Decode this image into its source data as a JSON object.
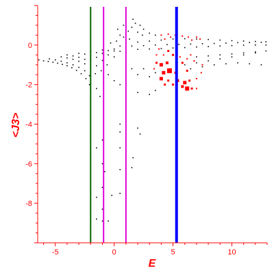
{
  "chart_data": {
    "type": "scatter",
    "title": "",
    "xlabel": "E",
    "ylabel": "<J3>",
    "xlim": [
      -6.5,
      13
    ],
    "ylim": [
      -10,
      2
    ],
    "xticks": [
      -5,
      0,
      5,
      10
    ],
    "yticks": [
      0,
      -2,
      -4,
      -6,
      -8
    ],
    "grid": false,
    "colors": {
      "axis": "#ff0000",
      "black_points": "#000000",
      "red_points": "#ff0000"
    },
    "vertical_lines": [
      {
        "x": -2.0,
        "color": "#006400"
      },
      {
        "x": -0.9,
        "color": "#dd00dd"
      },
      {
        "x": 1.0,
        "color": "#dd00dd"
      },
      {
        "x": 5.3,
        "color": "#0000ff"
      }
    ],
    "series": [
      {
        "color": "#000000",
        "points": [
          [
            -6.4,
            -0.75
          ],
          [
            -6.0,
            -0.8
          ],
          [
            -5.6,
            -0.83
          ],
          [
            -5.2,
            -0.87
          ],
          [
            -4.8,
            -0.92
          ],
          [
            -4.4,
            -0.98
          ],
          [
            -4.0,
            -1.05
          ],
          [
            -3.6,
            -1.15
          ],
          [
            -3.2,
            -1.28
          ],
          [
            -2.8,
            -1.45
          ],
          [
            -2.4,
            -1.7
          ],
          [
            -2.1,
            -2.0
          ],
          [
            -5.5,
            -0.7
          ],
          [
            -5.0,
            -0.75
          ],
          [
            -4.5,
            -0.82
          ],
          [
            -4.0,
            -0.9
          ],
          [
            -3.5,
            -1.0
          ],
          [
            -3.0,
            -1.13
          ],
          [
            -2.5,
            -1.3
          ],
          [
            -2.1,
            -1.55
          ],
          [
            -4.5,
            -0.6
          ],
          [
            -4.0,
            -0.65
          ],
          [
            -3.5,
            -0.72
          ],
          [
            -3.0,
            -0.82
          ],
          [
            -2.5,
            -0.95
          ],
          [
            -2.0,
            -1.15
          ],
          [
            -1.6,
            -1.45
          ],
          [
            -4.0,
            -0.5
          ],
          [
            -3.5,
            -0.55
          ],
          [
            -3.0,
            -0.62
          ],
          [
            -2.5,
            -0.72
          ],
          [
            -2.0,
            -0.85
          ],
          [
            -1.5,
            -1.05
          ],
          [
            -1.1,
            -1.3
          ],
          [
            -3.0,
            -0.42
          ],
          [
            -2.5,
            -0.46
          ],
          [
            -2.0,
            -0.52
          ],
          [
            -1.5,
            -0.62
          ],
          [
            -1.0,
            -0.78
          ],
          [
            -0.6,
            -1.0
          ],
          [
            -2.0,
            -0.35
          ],
          [
            -1.5,
            -0.38
          ],
          [
            -1.0,
            -0.42
          ],
          [
            -0.5,
            -0.5
          ],
          [
            0.0,
            -0.6
          ],
          [
            -1.0,
            -0.25
          ],
          [
            -0.5,
            -0.28
          ],
          [
            0.0,
            -0.3
          ],
          [
            0.5,
            -0.32
          ],
          [
            1.0,
            -0.35
          ],
          [
            0.0,
            -0.2
          ],
          [
            1.0,
            -0.22
          ],
          [
            2.0,
            -0.22
          ],
          [
            3.0,
            -0.2
          ],
          [
            4.0,
            -0.18
          ],
          [
            5.0,
            -0.15
          ],
          [
            6.0,
            -0.13
          ],
          [
            7.0,
            -0.1
          ],
          [
            8.0,
            -0.08
          ],
          [
            9.0,
            -0.05
          ],
          [
            10.0,
            -0.03
          ],
          [
            11.0,
            -0.01
          ],
          [
            12.0,
            0.0
          ],
          [
            12.9,
            0.0
          ],
          [
            0.5,
            -0.05
          ],
          [
            1.5,
            -0.05
          ],
          [
            2.5,
            -0.03
          ],
          [
            3.5,
            0.0
          ],
          [
            4.5,
            0.02
          ],
          [
            5.5,
            0.03
          ],
          [
            6.5,
            0.05
          ],
          [
            7.5,
            0.07
          ],
          [
            8.5,
            0.08
          ],
          [
            9.5,
            0.1
          ],
          [
            10.5,
            0.12
          ],
          [
            11.5,
            0.13
          ],
          [
            12.5,
            0.14
          ],
          [
            1.0,
            0.1
          ],
          [
            2.0,
            0.15
          ],
          [
            3.0,
            0.2
          ],
          [
            4.0,
            0.25
          ],
          [
            5.0,
            0.3
          ],
          [
            6.0,
            0.32
          ],
          [
            7.0,
            0.3
          ],
          [
            8.0,
            0.28
          ],
          [
            9.0,
            0.25
          ],
          [
            10.0,
            0.22
          ],
          [
            11.0,
            0.2
          ],
          [
            12.0,
            0.18
          ],
          [
            12.9,
            0.16
          ],
          [
            0.8,
            0.4
          ],
          [
            1.2,
            0.7
          ],
          [
            1.5,
            0.9
          ],
          [
            1.8,
            1.1
          ],
          [
            2.2,
            1.0
          ],
          [
            2.5,
            0.8
          ],
          [
            3.0,
            0.6
          ],
          [
            3.5,
            0.5
          ],
          [
            2.0,
            0.65
          ],
          [
            1.0,
            1.2
          ],
          [
            1.6,
            1.3
          ],
          [
            2.4,
            0.5
          ],
          [
            0.2,
            0.2
          ],
          [
            0.5,
            0.5
          ],
          [
            -0.3,
            0.1
          ],
          [
            0.3,
            0.8
          ],
          [
            0.8,
            1.0
          ],
          [
            1.3,
            0.3
          ],
          [
            1.0,
            -0.9
          ],
          [
            1.5,
            -1.2
          ],
          [
            2.0,
            -1.5
          ],
          [
            2.5,
            -1.2
          ],
          [
            3.0,
            -1.6
          ],
          [
            3.5,
            -1.4
          ],
          [
            6.0,
            -1.0
          ],
          [
            7.0,
            -0.9
          ],
          [
            8.0,
            -0.8
          ],
          [
            9.0,
            -0.7
          ],
          [
            10.0,
            -0.6
          ],
          [
            11.0,
            -0.5
          ],
          [
            12.0,
            -0.4
          ],
          [
            12.9,
            -0.3
          ],
          [
            6.5,
            -1.2
          ],
          [
            7.5,
            -1.1
          ],
          [
            8.5,
            -1.0
          ],
          [
            9.5,
            -0.95
          ],
          [
            10.5,
            -0.9
          ],
          [
            11.5,
            -0.95
          ],
          [
            12.5,
            -1.0
          ],
          [
            7.0,
            -0.6
          ],
          [
            8.0,
            -0.55
          ],
          [
            9.0,
            -0.5
          ],
          [
            10.0,
            -0.45
          ],
          [
            11.0,
            -0.4
          ],
          [
            12.0,
            -0.35
          ],
          [
            2.0,
            -2.4
          ],
          [
            3.0,
            -2.5
          ],
          [
            3.5,
            -2.3
          ],
          [
            -0.5,
            -1.5
          ],
          [
            0.0,
            -1.8
          ],
          [
            0.5,
            -2.0
          ],
          [
            -1.5,
            -2.2
          ],
          [
            -1.2,
            -2.6
          ],
          [
            -2.0,
            -4.1
          ],
          [
            -2.0,
            -4.6
          ],
          [
            -2.0,
            -5.0
          ],
          [
            -2.0,
            -5.5
          ],
          [
            -1.5,
            -5.2
          ],
          [
            -1.0,
            -4.8
          ],
          [
            -1.0,
            -6.0
          ],
          [
            -1.0,
            -7.2
          ],
          [
            0.5,
            -4.0
          ],
          [
            0.5,
            -4.4
          ],
          [
            0.5,
            -5.2
          ],
          [
            0.5,
            -6.3
          ],
          [
            0.5,
            -7.5
          ],
          [
            1.5,
            -6.2
          ],
          [
            2.0,
            -4.2
          ],
          [
            2.2,
            -4.5
          ],
          [
            -1.5,
            -7.7
          ],
          [
            -1.0,
            -8.3
          ],
          [
            -1.5,
            -8.8
          ],
          [
            -1.0,
            -8.9
          ],
          [
            -0.5,
            -8.9
          ],
          [
            -0.8,
            -6.4
          ],
          [
            -0.2,
            -7.6
          ],
          [
            1.0,
            -6.5
          ],
          [
            1.6,
            -5.7
          ]
        ]
      },
      {
        "color": "#ff0000",
        "points": [
          [
            4.0,
            0.5
          ],
          [
            4.6,
            0.55
          ],
          [
            5.2,
            0.5
          ],
          [
            5.8,
            0.45
          ],
          [
            6.3,
            0.4
          ],
          [
            4.3,
            0.3
          ],
          [
            4.8,
            0.4
          ],
          [
            6.6,
            0.25
          ],
          [
            7.0,
            0.4
          ],
          [
            7.3,
            0.3
          ],
          [
            3.8,
            -0.2
          ],
          [
            3.6,
            -0.5
          ],
          [
            4.2,
            -0.5
          ],
          [
            4.6,
            -0.3
          ],
          [
            5.0,
            -0.5
          ],
          [
            5.6,
            -0.6
          ],
          [
            6.2,
            -0.7
          ],
          [
            6.5,
            -0.5
          ],
          [
            3.6,
            -0.9
          ],
          [
            4.0,
            -1.0
          ],
          [
            4.5,
            -0.9
          ],
          [
            5.8,
            -0.9
          ],
          [
            6.8,
            -0.8
          ],
          [
            7.5,
            -1.0
          ],
          [
            3.4,
            -1.2
          ],
          [
            4.2,
            -1.4
          ],
          [
            4.7,
            -1.3
          ],
          [
            5.2,
            -1.4
          ],
          [
            6.2,
            -1.3
          ],
          [
            7.4,
            -1.4
          ],
          [
            4.0,
            -1.7
          ],
          [
            4.6,
            -1.8
          ],
          [
            5.4,
            -1.8
          ],
          [
            6.0,
            -1.9
          ],
          [
            6.4,
            -1.8
          ],
          [
            7.0,
            -1.7
          ],
          [
            4.3,
            -2.0
          ],
          [
            5.0,
            -2.0
          ],
          [
            5.8,
            -2.1
          ],
          [
            6.2,
            -2.2
          ],
          [
            6.6,
            -2.2
          ],
          [
            7.0,
            -2.2
          ]
        ],
        "sizes": [
          2,
          2,
          2,
          2,
          2,
          2,
          2,
          2,
          2,
          2,
          2,
          2,
          2,
          3,
          3,
          2,
          2,
          2,
          3,
          5,
          4,
          3,
          2,
          2,
          2,
          5,
          7,
          3,
          3,
          2,
          5,
          3,
          4,
          5,
          3,
          2,
          3,
          3,
          4,
          6,
          3,
          2
        ]
      }
    ]
  }
}
